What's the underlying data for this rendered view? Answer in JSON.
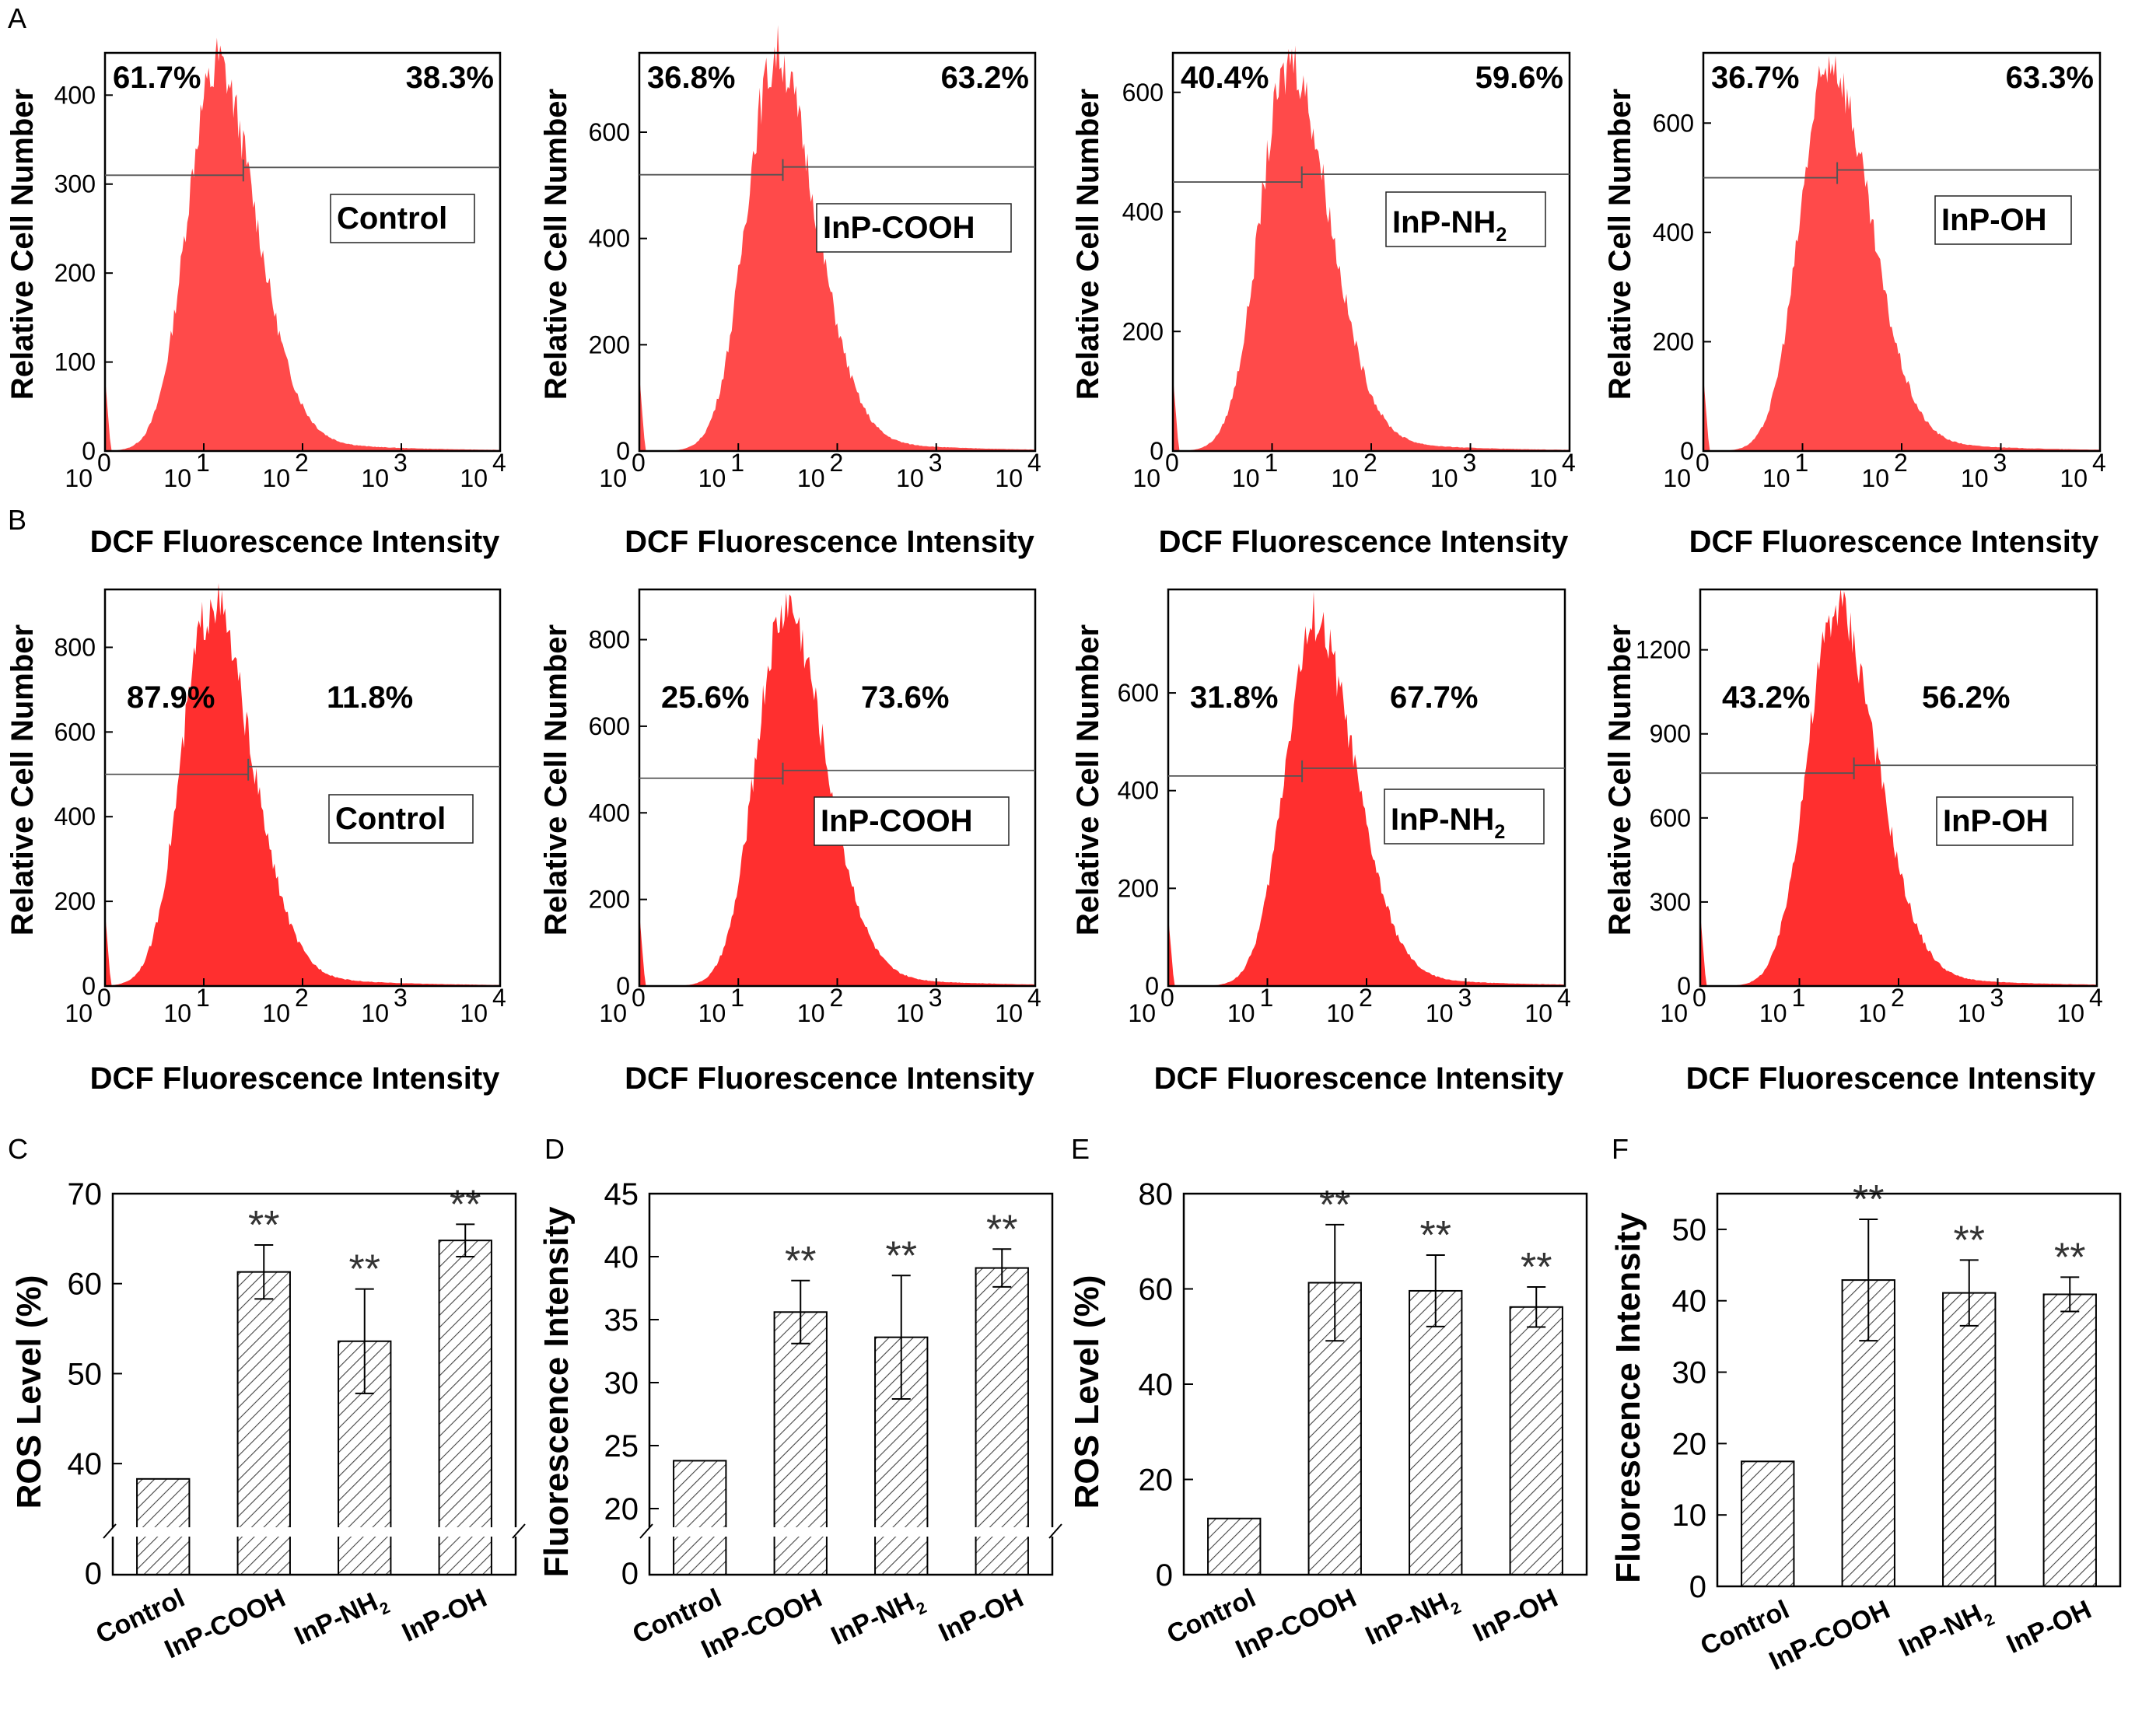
{
  "colors": {
    "hist_a": "#ff4a4a",
    "hist_b": "#ff2f2f",
    "axis": "#000000",
    "gate": "#555555",
    "bar_fill": "#ffffff",
    "hatch": "#444444",
    "star": "#333333"
  },
  "chart_data": [
    {
      "id": "A1",
      "panel_label": "A",
      "type": "area",
      "xlabel": "DCF Fluorescence Intensity",
      "ylabel": "Relative Cell Number",
      "x_log_range": [
        0,
        4
      ],
      "ylim": [
        0,
        430
      ],
      "yticks": [
        0,
        100,
        200,
        300,
        400
      ],
      "x_exponents": [
        "0",
        "1",
        "2",
        "3",
        "4"
      ],
      "tick_base": "10",
      "peak": {
        "log_x": 1.1,
        "y": 420
      },
      "gate_log_x": 1.4,
      "gate_level": 310,
      "left_pct": "61.7%",
      "right_pct": "38.3%",
      "legend": "Control",
      "legend_sub": ""
    },
    {
      "id": "A2",
      "panel_label": "",
      "type": "area",
      "xlabel": "DCF Fluorescence Intensity",
      "ylabel": "Relative Cell Number",
      "x_log_range": [
        0,
        4
      ],
      "ylim": [
        0,
        720
      ],
      "yticks": [
        0,
        200,
        400,
        600
      ],
      "x_exponents": [
        "0",
        "1",
        "2",
        "3",
        "4"
      ],
      "tick_base": "10",
      "peak": {
        "log_x": 1.35,
        "y": 720
      },
      "gate_log_x": 1.45,
      "gate_level": 520,
      "left_pct": "36.8%",
      "right_pct": "63.2%",
      "legend": "InP-COOH",
      "legend_sub": ""
    },
    {
      "id": "A3",
      "panel_label": "",
      "type": "area",
      "xlabel": "DCF Fluorescence Intensity",
      "ylabel": "Relative Cell Number",
      "x_log_range": [
        0,
        4
      ],
      "ylim": [
        0,
        640
      ],
      "yticks": [
        0,
        200,
        400,
        600
      ],
      "x_exponents": [
        "0",
        "1",
        "2",
        "3",
        "4"
      ],
      "tick_base": "10",
      "peak": {
        "log_x": 1.15,
        "y": 630
      },
      "gate_log_x": 1.3,
      "gate_level": 450,
      "left_pct": "40.4%",
      "right_pct": "59.6%",
      "legend": "InP-NH",
      "legend_sub": "2"
    },
    {
      "id": "A4",
      "panel_label": "",
      "type": "area",
      "xlabel": "DCF Fluorescence Intensity",
      "ylabel": "Relative Cell Number",
      "x_log_range": [
        0,
        4
      ],
      "ylim": [
        0,
        700
      ],
      "yticks": [
        0,
        200,
        400,
        600
      ],
      "x_exponents": [
        "0",
        "1",
        "2",
        "3",
        "4"
      ],
      "tick_base": "10",
      "peak": {
        "log_x": 1.25,
        "y": 690
      },
      "gate_log_x": 1.35,
      "gate_level": 500,
      "left_pct": "36.7%",
      "right_pct": "63.3%",
      "legend": "InP-OH",
      "legend_sub": ""
    },
    {
      "id": "B1",
      "panel_label": "B",
      "type": "area",
      "xlabel": "DCF Fluorescence Intensity",
      "ylabel": "Relative Cell Number",
      "x_log_range": [
        0,
        4
      ],
      "ylim": [
        0,
        900
      ],
      "yticks": [
        0,
        200,
        400,
        600,
        800
      ],
      "x_exponents": [
        "0",
        "1",
        "2",
        "3",
        "4"
      ],
      "tick_base": "10",
      "peak": {
        "log_x": 1.05,
        "y": 880
      },
      "gate_log_x": 1.45,
      "gate_level": 500,
      "left_pct": "87.9%",
      "right_pct": "11.8%",
      "legend": "Control",
      "legend_sub": ""
    },
    {
      "id": "B2",
      "panel_label": "",
      "type": "area",
      "xlabel": "DCF Fluorescence Intensity",
      "ylabel": "Relative Cell Number",
      "x_log_range": [
        0,
        4
      ],
      "ylim": [
        0,
        880
      ],
      "yticks": [
        0,
        200,
        400,
        600,
        800
      ],
      "x_exponents": [
        "0",
        "1",
        "2",
        "3",
        "4"
      ],
      "tick_base": "10",
      "peak": {
        "log_x": 1.45,
        "y": 850
      },
      "gate_log_x": 1.45,
      "gate_level": 480,
      "left_pct": "25.6%",
      "right_pct": "73.6%",
      "legend": "InP-COOH",
      "legend_sub": ""
    },
    {
      "id": "B3",
      "panel_label": "",
      "type": "area",
      "xlabel": "DCF Fluorescence Intensity",
      "ylabel": "Relative Cell Number",
      "x_log_range": [
        0,
        4
      ],
      "ylim": [
        0,
        780
      ],
      "yticks": [
        0,
        200,
        400,
        600
      ],
      "x_exponents": [
        "0",
        "1",
        "2",
        "3",
        "4"
      ],
      "tick_base": "10",
      "peak": {
        "log_x": 1.45,
        "y": 720
      },
      "gate_log_x": 1.35,
      "gate_level": 430,
      "left_pct": "31.8%",
      "right_pct": "67.7%",
      "legend": "InP-NH",
      "legend_sub": "2"
    },
    {
      "id": "B4",
      "panel_label": "",
      "type": "area",
      "xlabel": "DCF Fluorescence Intensity",
      "ylabel": "Relative Cell Number",
      "x_log_range": [
        0,
        4
      ],
      "ylim": [
        0,
        1360
      ],
      "yticks": [
        0,
        300,
        600,
        900,
        1200
      ],
      "x_exponents": [
        "0",
        "1",
        "2",
        "3",
        "4"
      ],
      "tick_base": "10",
      "peak": {
        "log_x": 1.35,
        "y": 1310
      },
      "gate_log_x": 1.55,
      "gate_level": 760,
      "left_pct": "43.2%",
      "right_pct": "56.2%",
      "legend": "InP-OH",
      "legend_sub": ""
    },
    {
      "id": "C",
      "panel_label": "C",
      "type": "bar",
      "ylabel": "ROS Level (%)",
      "categories": [
        "Control",
        "InP-COOH",
        "InP-NH",
        "InP-OH"
      ],
      "category_subs": [
        "",
        "",
        "2",
        ""
      ],
      "values": [
        38.3,
        61.3,
        53.6,
        64.8
      ],
      "errors": [
        0,
        3.0,
        5.8,
        1.8
      ],
      "significance": [
        "",
        "**",
        "**",
        "**"
      ],
      "axis_break": true,
      "ylim": [
        35,
        70
      ],
      "yticks": [
        40,
        50,
        60,
        70
      ],
      "zero_label": "0"
    },
    {
      "id": "D",
      "panel_label": "D",
      "type": "bar",
      "ylabel": "Fluorescence Intensity",
      "categories": [
        "Control",
        "InP-COOH",
        "InP-NH",
        "InP-OH"
      ],
      "category_subs": [
        "",
        "",
        "2",
        ""
      ],
      "values": [
        23.8,
        35.6,
        33.6,
        39.1
      ],
      "errors": [
        0,
        2.5,
        4.9,
        1.5
      ],
      "significance": [
        "",
        "**",
        "**",
        "**"
      ],
      "axis_break": true,
      "ylim": [
        20,
        45
      ],
      "yticks": [
        20,
        25,
        30,
        35,
        40,
        45
      ],
      "zero_label": "0"
    },
    {
      "id": "E",
      "panel_label": "E",
      "type": "bar",
      "ylabel": "ROS Level (%)",
      "categories": [
        "Control",
        "InP-COOH",
        "InP-NH",
        "InP-OH"
      ],
      "category_subs": [
        "",
        "",
        "2",
        ""
      ],
      "values": [
        11.8,
        61.3,
        59.6,
        56.2
      ],
      "errors": [
        0,
        12.2,
        7.5,
        4.2
      ],
      "significance": [
        "",
        "**",
        "**",
        "**"
      ],
      "axis_break": false,
      "ylim": [
        0,
        80
      ],
      "yticks": [
        0,
        20,
        40,
        60,
        80
      ]
    },
    {
      "id": "F",
      "panel_label": "F",
      "type": "bar",
      "ylabel": "Fluorescence Intensity",
      "categories": [
        "Control",
        "InP-COOH",
        "InP-NH",
        "InP-OH"
      ],
      "category_subs": [
        "",
        "",
        "2",
        ""
      ],
      "values": [
        17.5,
        42.9,
        41.1,
        40.9
      ],
      "errors": [
        0,
        8.5,
        4.6,
        2.4
      ],
      "significance": [
        "",
        "**",
        "**",
        "**"
      ],
      "axis_break": false,
      "ylim": [
        0,
        55
      ],
      "yticks": [
        0,
        10,
        20,
        30,
        40,
        50
      ]
    }
  ]
}
